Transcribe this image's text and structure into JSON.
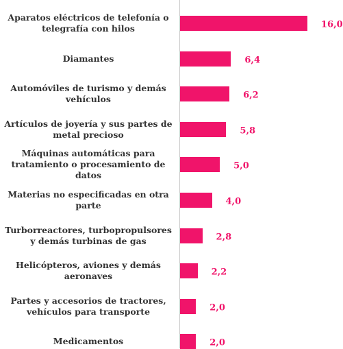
{
  "chart_data": {
    "type": "bar",
    "orientation": "horizontal",
    "categories": [
      "Aparatos eléctricos de telefonía o telegrafía con hilos",
      "Diamantes",
      "Automóviles de turismo y demás vehículos",
      "Artículos de joyería y sus partes de metal precioso",
      "Máquinas automáticas para tratamiento o procesamiento de datos",
      "Materias no especificadas en otra parte",
      "Turborreactores, turbopropulsores y demás turbinas de gas",
      "Helicópteros, aviones y demás aeronaves",
      "Partes y accesorios de tractores, vehículos para transporte",
      "Medicamentos"
    ],
    "values": [
      16.0,
      6.4,
      6.2,
      5.8,
      5.0,
      4.0,
      2.8,
      2.2,
      2.0,
      2.0
    ],
    "value_labels": [
      "16,0",
      "6,4",
      "6,2",
      "5,8",
      "5,0",
      "4,0",
      "2,8",
      "2,2",
      "2,0",
      "2,0"
    ],
    "color": "#f0146a"
  }
}
